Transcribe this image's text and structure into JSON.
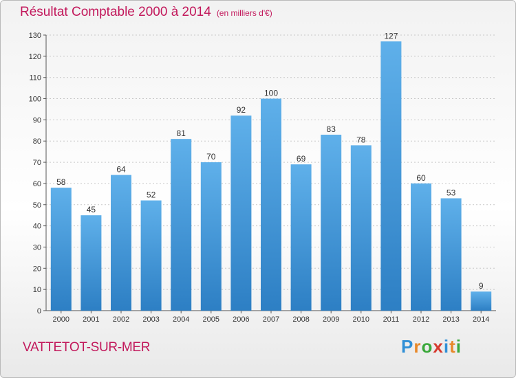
{
  "header": {
    "title": "Résultat Comptable 2000 à 2014",
    "subtitle": "(en milliers d'€)"
  },
  "footer": {
    "commune": "VATTETOT-SUR-MER",
    "logo": "Proxiti"
  },
  "colors": {
    "title": "#c2185b",
    "bar_top": "#5fb0ea",
    "bar_bottom": "#2d7fc4",
    "logo_letters": [
      "#2f8fd6",
      "#e8892a",
      "#3aa83a",
      "#d63a2f",
      "#2f8fd6",
      "#e8892a",
      "#3aa83a"
    ]
  },
  "chart_data": {
    "type": "bar",
    "title": "Résultat Comptable 2000 à 2014",
    "subtitle": "(en milliers d'€)",
    "xlabel": "",
    "ylabel": "",
    "categories": [
      "2000",
      "2001",
      "2002",
      "2003",
      "2004",
      "2005",
      "2006",
      "2007",
      "2008",
      "2009",
      "2010",
      "2011",
      "2012",
      "2013",
      "2014"
    ],
    "values": [
      58,
      45,
      64,
      52,
      81,
      70,
      92,
      100,
      69,
      83,
      78,
      127,
      60,
      53,
      9
    ],
    "ylim": [
      0,
      130
    ],
    "yticks": [
      0,
      10,
      20,
      30,
      40,
      50,
      60,
      70,
      80,
      90,
      100,
      110,
      120,
      130
    ],
    "grid": true,
    "data_labels": true,
    "legend": "none"
  }
}
